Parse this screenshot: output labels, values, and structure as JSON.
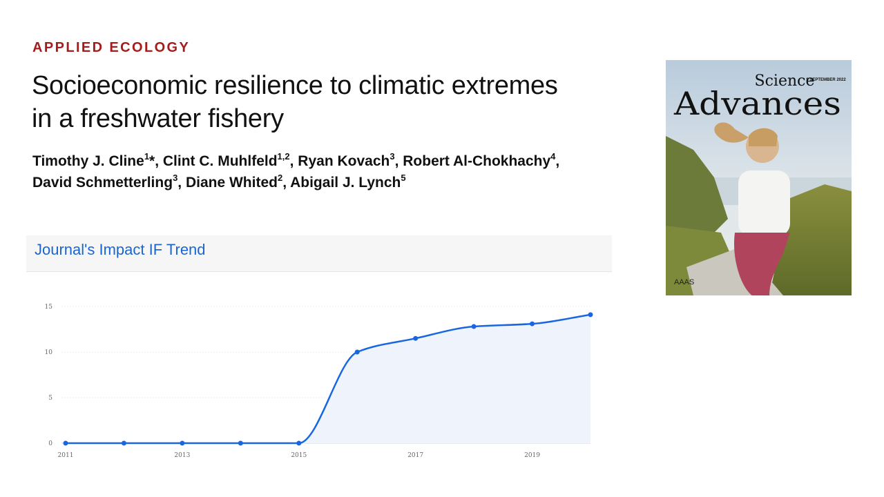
{
  "article": {
    "section": "APPLIED ECOLOGY",
    "title_line1": "Socioeconomic resilience to climatic extremes",
    "title_line2": "in a freshwater fishery",
    "authors": [
      {
        "name": "Timothy J. Cline",
        "sup": "1",
        "suffix": "*, "
      },
      {
        "name": "Clint C. Muhlfeld",
        "sup": "1,2",
        "suffix": ", "
      },
      {
        "name": "Ryan Kovach",
        "sup": "3",
        "suffix": ", "
      },
      {
        "name": "Robert Al-Chokhachy",
        "sup": "4",
        "suffix": ","
      },
      {
        "name": "David Schmetterling",
        "sup": "3",
        "suffix": ", "
      },
      {
        "name": "Diane Whited",
        "sup": "2",
        "suffix": ", "
      },
      {
        "name": "Abigail J. Lynch",
        "sup": "5",
        "suffix": ""
      }
    ]
  },
  "cover": {
    "journal_line1": "Science",
    "journal_line2": "Advances",
    "date": "9 SEPTEMBER 2022",
    "publisher": "AAAS"
  },
  "if_section": {
    "title": "Journal's Impact IF Trend"
  },
  "chart_data": {
    "type": "area",
    "title": "",
    "xlabel": "",
    "ylabel": "",
    "x": [
      2011,
      2012,
      2013,
      2014,
      2015,
      2016,
      2017,
      2018,
      2019,
      2020
    ],
    "x_tick_labels": [
      "2011",
      "2013",
      "2015",
      "2017",
      "2019"
    ],
    "y_ticks": [
      0,
      5,
      10,
      15
    ],
    "ylim": [
      0,
      15
    ],
    "series": [
      {
        "values": [
          0,
          0,
          0,
          0,
          0,
          10.0,
          11.5,
          12.8,
          13.1,
          14.1
        ]
      }
    ],
    "line_color": "#1a66e0",
    "fill_color": "#eef3fc",
    "grid": true,
    "legend": "none"
  }
}
